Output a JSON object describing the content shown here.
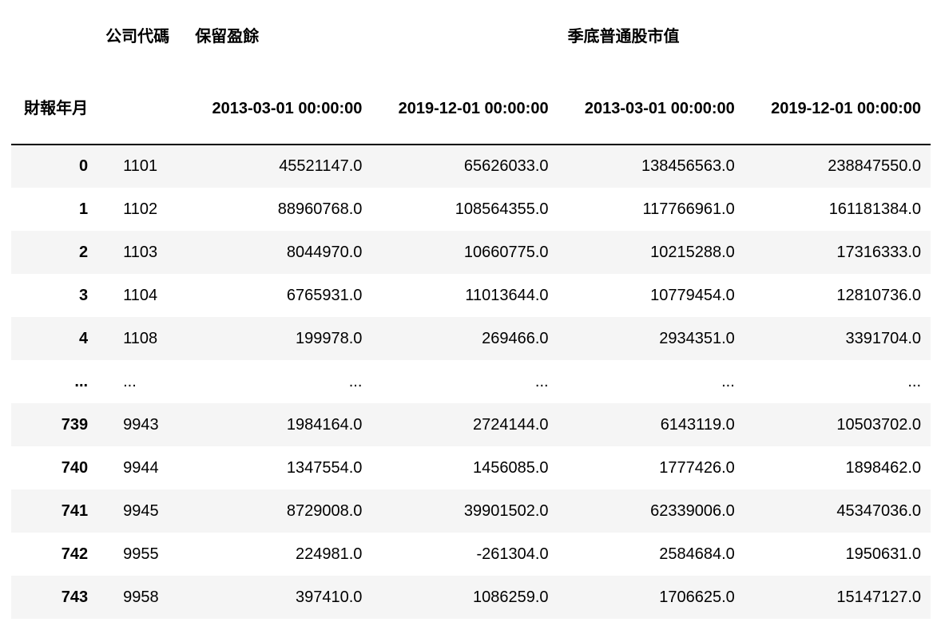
{
  "header": {
    "top": [
      "",
      "公司代碼",
      "保留盈餘",
      "季底普通股市值"
    ],
    "index_name": "財報年月",
    "dates": [
      "2013-03-01 00:00:00",
      "2019-12-01 00:00:00",
      "2013-03-01 00:00:00",
      "2019-12-01 00:00:00"
    ]
  },
  "rows": [
    [
      "0",
      "1101",
      "45521147.0",
      "65626033.0",
      "138456563.0",
      "238847550.0"
    ],
    [
      "1",
      "1102",
      "88960768.0",
      "108564355.0",
      "117766961.0",
      "161181384.0"
    ],
    [
      "2",
      "1103",
      "8044970.0",
      "10660775.0",
      "10215288.0",
      "17316333.0"
    ],
    [
      "3",
      "1104",
      "6765931.0",
      "11013644.0",
      "10779454.0",
      "12810736.0"
    ],
    [
      "4",
      "1108",
      "199978.0",
      "269466.0",
      "2934351.0",
      "3391704.0"
    ],
    [
      "...",
      "...",
      "...",
      "...",
      "...",
      "..."
    ],
    [
      "739",
      "9943",
      "1984164.0",
      "2724144.0",
      "6143119.0",
      "10503702.0"
    ],
    [
      "740",
      "9944",
      "1347554.0",
      "1456085.0",
      "1777426.0",
      "1898462.0"
    ],
    [
      "741",
      "9945",
      "8729008.0",
      "39901502.0",
      "62339006.0",
      "45347036.0"
    ],
    [
      "742",
      "9955",
      "224981.0",
      "-261304.0",
      "2584684.0",
      "1950631.0"
    ],
    [
      "743",
      "9958",
      "397410.0",
      "1086259.0",
      "1706625.0",
      "15147127.0"
    ]
  ]
}
